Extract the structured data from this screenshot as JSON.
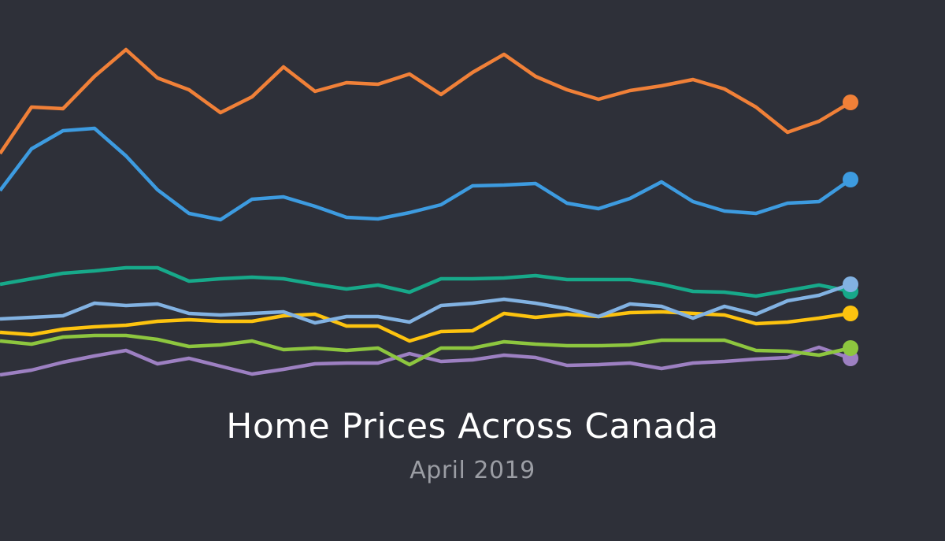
{
  "chart_data": {
    "type": "line",
    "title": "Home Prices Across Canada",
    "subtitle": "April 2019",
    "xlabel": "",
    "ylabel": "",
    "ylim": [
      0,
      500
    ],
    "grid": false,
    "legend": "none",
    "x": [
      0,
      1,
      2,
      3,
      4,
      5,
      6,
      7,
      8,
      9,
      10,
      11,
      12,
      13,
      14,
      15,
      16,
      17,
      18,
      19,
      20,
      21,
      22,
      23,
      24,
      25,
      26,
      27
    ],
    "series": [
      {
        "name": "purple",
        "color": "#9d80c2",
        "values": [
          24,
          30,
          40,
          48,
          55,
          38,
          45,
          35,
          25,
          31,
          38,
          39,
          39,
          51,
          41,
          43,
          49,
          46,
          36,
          37,
          39,
          32,
          39,
          41,
          44,
          46,
          59,
          45
        ]
      },
      {
        "name": "green",
        "color": "#8dc63f",
        "values": [
          67,
          63,
          72,
          74,
          74,
          69,
          60,
          62,
          67,
          56,
          58,
          55,
          58,
          37,
          58,
          58,
          66,
          63,
          61,
          61,
          62,
          68,
          68,
          68,
          55,
          54,
          49,
          58
        ]
      },
      {
        "name": "yellow",
        "color": "#fdc30f",
        "values": [
          78,
          75,
          82,
          85,
          87,
          92,
          94,
          92,
          92,
          99,
          101,
          86,
          86,
          67,
          79,
          80,
          102,
          97,
          101,
          98,
          103,
          104,
          102,
          100,
          89,
          91,
          96,
          102
        ]
      },
      {
        "name": "teal",
        "color": "#17a98a",
        "values": [
          139,
          146,
          153,
          156,
          160,
          160,
          143,
          146,
          148,
          146,
          139,
          133,
          138,
          129,
          146,
          146,
          147,
          150,
          145,
          145,
          145,
          139,
          130,
          129,
          124,
          131,
          138,
          130
        ]
      },
      {
        "name": "light-blue",
        "color": "#82b2e2",
        "values": [
          95,
          97,
          99,
          115,
          112,
          114,
          102,
          100,
          102,
          104,
          90,
          98,
          98,
          91,
          112,
          115,
          120,
          115,
          108,
          98,
          114,
          111,
          96,
          111,
          101,
          118,
          125,
          139
        ]
      },
      {
        "name": "blue",
        "color": "#3d9be0",
        "values": [
          258,
          311,
          334,
          337,
          302,
          259,
          229,
          221,
          247,
          250,
          238,
          224,
          222,
          230,
          240,
          264,
          265,
          267,
          242,
          235,
          248,
          269,
          244,
          232,
          229,
          242,
          244,
          272
        ]
      },
      {
        "name": "orange",
        "color": "#f08038",
        "values": [
          305,
          364,
          362,
          403,
          437,
          401,
          386,
          357,
          377,
          415,
          384,
          395,
          393,
          406,
          380,
          408,
          431,
          403,
          386,
          374,
          385,
          391,
          399,
          387,
          364,
          332,
          346,
          370
        ]
      }
    ]
  }
}
